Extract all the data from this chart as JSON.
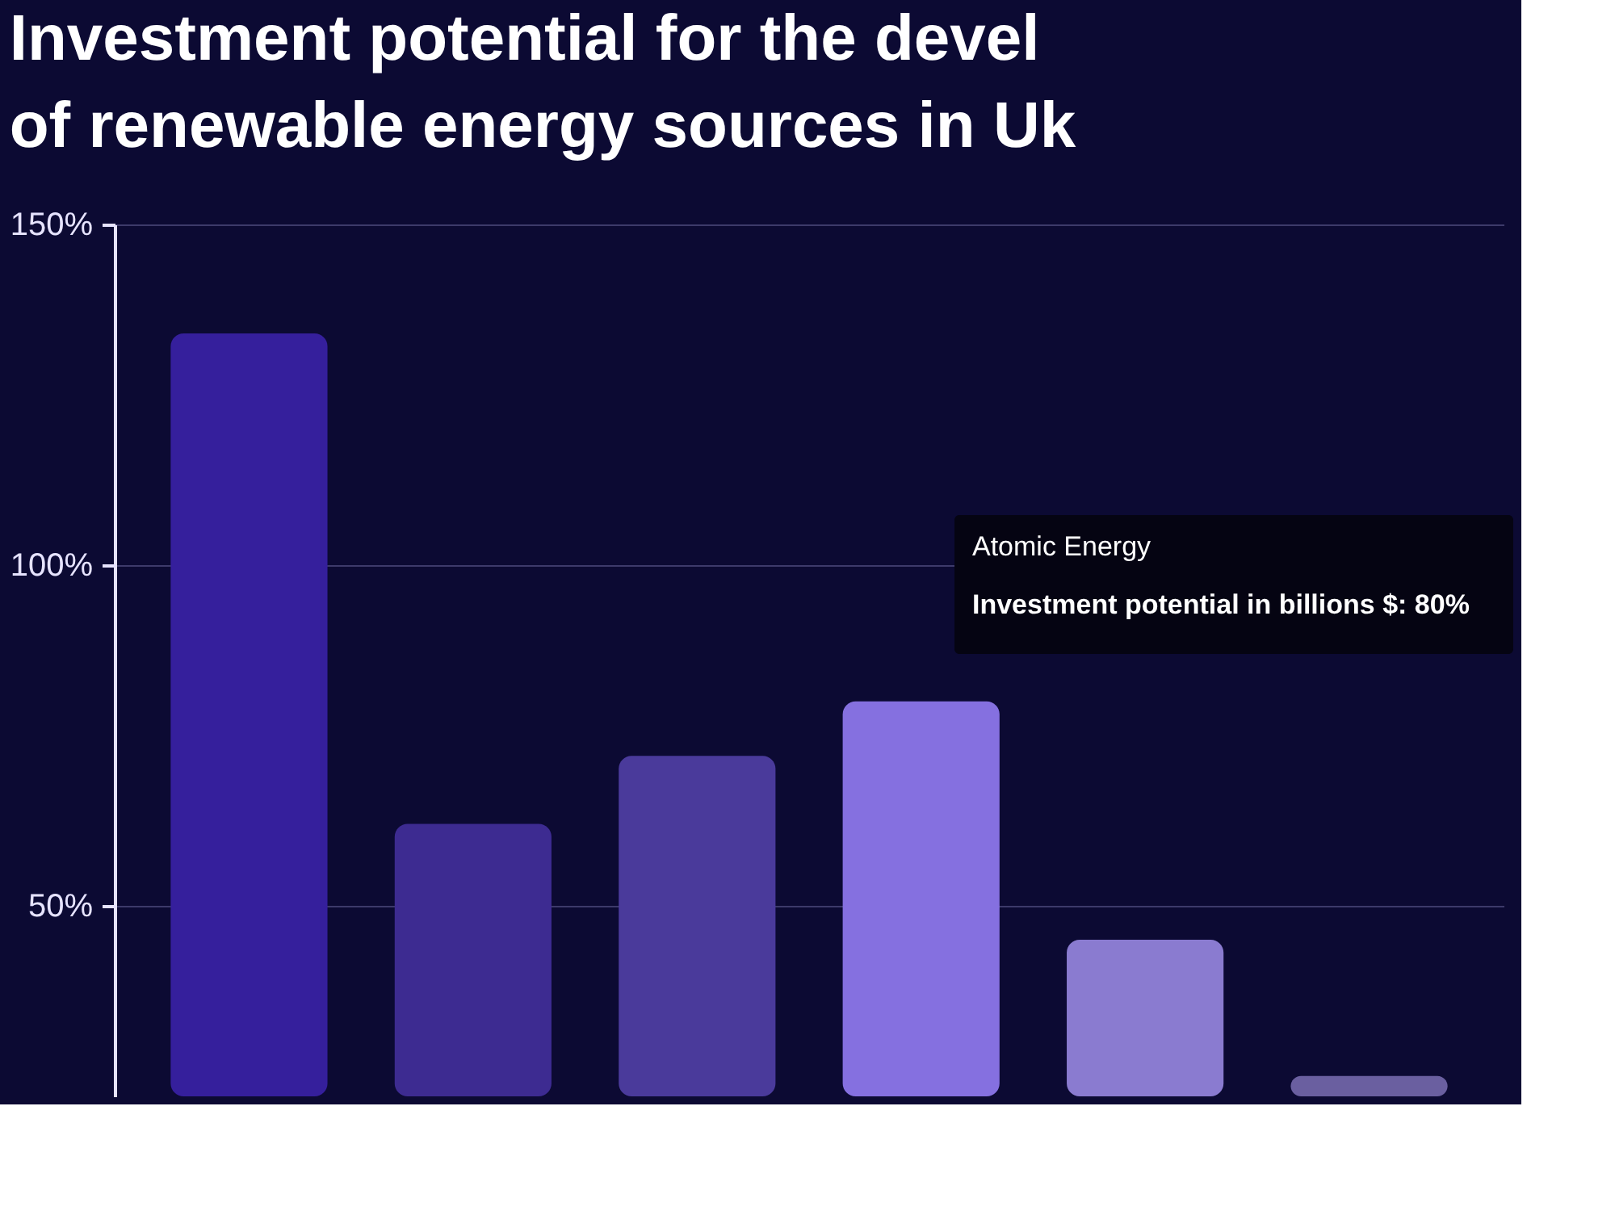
{
  "chart_data": {
    "type": "bar",
    "title": [
      "Investment potential for the devel",
      "of renewable energy sources in Uk"
    ],
    "categories": [
      null,
      null,
      null,
      null,
      null,
      null
    ],
    "values": [
      134,
      62,
      72,
      80,
      45,
      25
    ],
    "colors": [
      "#351f9c",
      "#3d2b91",
      "#4a3a9b",
      "#8570e0",
      "#8a7bd0",
      "#6a5fa0"
    ],
    "ylim": [
      22,
      150
    ],
    "yticks": [
      {
        "value": 50,
        "label": "50%"
      },
      {
        "value": 100,
        "label": "100%"
      },
      {
        "value": 150,
        "label": "150%"
      }
    ],
    "grid": "y",
    "tick_labels": "y",
    "annotations": [
      "Atomic Energy",
      "Investment potential in billions $: 80%"
    ]
  }
}
